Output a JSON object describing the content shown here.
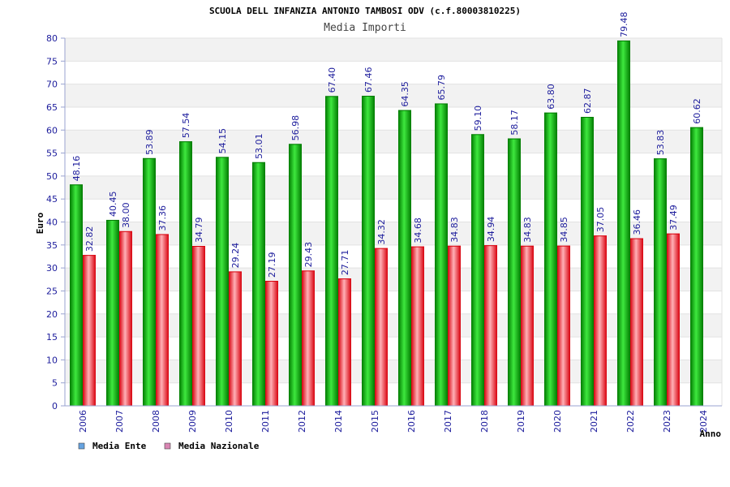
{
  "chart_data": {
    "type": "bar",
    "title": "SCUOLA DELL INFANZIA ANTONIO TAMBOSI ODV (c.f.80003810225)",
    "subtitle": "Media Importi",
    "xlabel": "Anno",
    "ylabel": "Euro",
    "ylim": [
      0,
      80
    ],
    "ytick_step": 5,
    "categories": [
      "2006",
      "2007",
      "2008",
      "2009",
      "2010",
      "2011",
      "2012",
      "2014",
      "2015",
      "2016",
      "2017",
      "2018",
      "2019",
      "2020",
      "2021",
      "2022",
      "2023",
      "2024"
    ],
    "series": [
      {
        "name": "Media Ente",
        "legend_color": "#66a3e0",
        "color_dark": "#007a00",
        "color_light": "#3ee83e",
        "values": [
          48.16,
          40.45,
          53.89,
          57.54,
          54.15,
          53.01,
          56.98,
          67.4,
          67.46,
          64.35,
          65.79,
          59.1,
          58.17,
          63.8,
          62.87,
          79.48,
          53.83,
          60.62
        ],
        "labels": [
          "48.16",
          "40.45",
          "53.89",
          "57.54",
          "54.15",
          "53.01",
          "56.98",
          "67.40",
          "67.46",
          "64.35",
          "65.79",
          "59.10",
          "58.17",
          "63.80",
          "62.87",
          "79.48",
          "53.83",
          "60.62"
        ]
      },
      {
        "name": "Media Nazionale",
        "legend_color": "#d986b3",
        "color_dark": "#d8000c",
        "color_light": "#ffb0b6",
        "values": [
          32.82,
          38.0,
          37.36,
          34.79,
          29.24,
          27.19,
          29.43,
          27.71,
          34.32,
          34.68,
          34.83,
          34.94,
          34.83,
          34.85,
          37.05,
          36.46,
          37.49,
          null
        ],
        "labels": [
          "32.82",
          "38.00",
          "37.36",
          "34.79",
          "29.24",
          "27.19",
          "29.43",
          "27.71",
          "34.32",
          "34.68",
          "34.83",
          "34.94",
          "34.83",
          "34.85",
          "37.05",
          "36.46",
          "37.49",
          ""
        ]
      }
    ],
    "grid": true,
    "legend_position": "bottom-left"
  }
}
